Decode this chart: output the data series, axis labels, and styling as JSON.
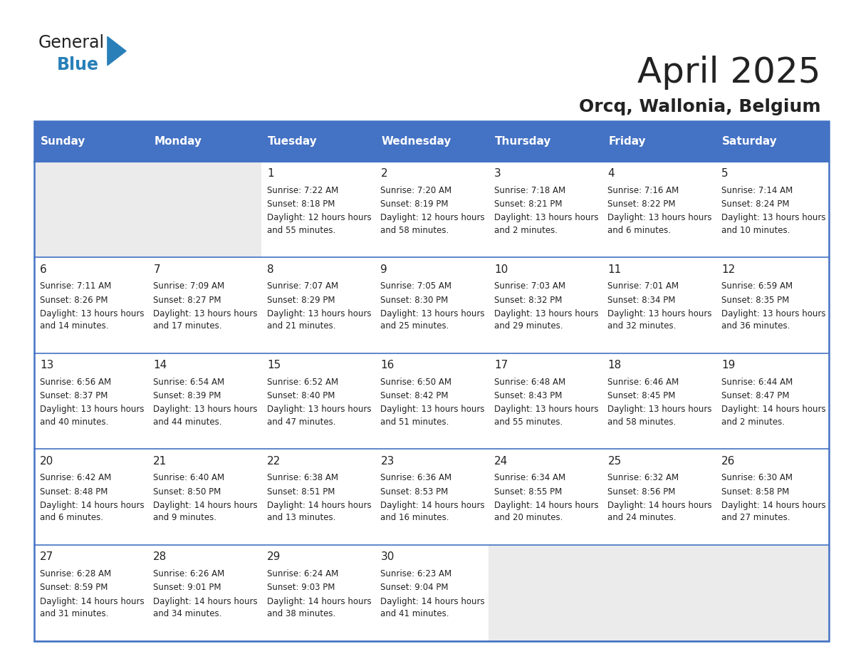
{
  "title": "April 2025",
  "subtitle": "Orcq, Wallonia, Belgium",
  "header_color": "#4472C4",
  "header_text_color": "#FFFFFF",
  "cell_bg_color": "#FFFFFF",
  "empty_cell_bg_color": "#EBEBEB",
  "border_color": "#4472C4",
  "row_sep_color": "#4472C4",
  "day_headers": [
    "Sunday",
    "Monday",
    "Tuesday",
    "Wednesday",
    "Thursday",
    "Friday",
    "Saturday"
  ],
  "title_color": "#222222",
  "subtitle_color": "#222222",
  "days": [
    {
      "day": "",
      "row": 0,
      "col": 0,
      "sunrise": "",
      "sunset": "",
      "daylight": ""
    },
    {
      "day": "",
      "row": 0,
      "col": 1,
      "sunrise": "",
      "sunset": "",
      "daylight": ""
    },
    {
      "day": "1",
      "row": 0,
      "col": 2,
      "sunrise": "7:22 AM",
      "sunset": "8:18 PM",
      "daylight": "12 hours and 55 minutes."
    },
    {
      "day": "2",
      "row": 0,
      "col": 3,
      "sunrise": "7:20 AM",
      "sunset": "8:19 PM",
      "daylight": "12 hours and 58 minutes."
    },
    {
      "day": "3",
      "row": 0,
      "col": 4,
      "sunrise": "7:18 AM",
      "sunset": "8:21 PM",
      "daylight": "13 hours and 2 minutes."
    },
    {
      "day": "4",
      "row": 0,
      "col": 5,
      "sunrise": "7:16 AM",
      "sunset": "8:22 PM",
      "daylight": "13 hours and 6 minutes."
    },
    {
      "day": "5",
      "row": 0,
      "col": 6,
      "sunrise": "7:14 AM",
      "sunset": "8:24 PM",
      "daylight": "13 hours and 10 minutes."
    },
    {
      "day": "6",
      "row": 1,
      "col": 0,
      "sunrise": "7:11 AM",
      "sunset": "8:26 PM",
      "daylight": "13 hours and 14 minutes."
    },
    {
      "day": "7",
      "row": 1,
      "col": 1,
      "sunrise": "7:09 AM",
      "sunset": "8:27 PM",
      "daylight": "13 hours and 17 minutes."
    },
    {
      "day": "8",
      "row": 1,
      "col": 2,
      "sunrise": "7:07 AM",
      "sunset": "8:29 PM",
      "daylight": "13 hours and 21 minutes."
    },
    {
      "day": "9",
      "row": 1,
      "col": 3,
      "sunrise": "7:05 AM",
      "sunset": "8:30 PM",
      "daylight": "13 hours and 25 minutes."
    },
    {
      "day": "10",
      "row": 1,
      "col": 4,
      "sunrise": "7:03 AM",
      "sunset": "8:32 PM",
      "daylight": "13 hours and 29 minutes."
    },
    {
      "day": "11",
      "row": 1,
      "col": 5,
      "sunrise": "7:01 AM",
      "sunset": "8:34 PM",
      "daylight": "13 hours and 32 minutes."
    },
    {
      "day": "12",
      "row": 1,
      "col": 6,
      "sunrise": "6:59 AM",
      "sunset": "8:35 PM",
      "daylight": "13 hours and 36 minutes."
    },
    {
      "day": "13",
      "row": 2,
      "col": 0,
      "sunrise": "6:56 AM",
      "sunset": "8:37 PM",
      "daylight": "13 hours and 40 minutes."
    },
    {
      "day": "14",
      "row": 2,
      "col": 1,
      "sunrise": "6:54 AM",
      "sunset": "8:39 PM",
      "daylight": "13 hours and 44 minutes."
    },
    {
      "day": "15",
      "row": 2,
      "col": 2,
      "sunrise": "6:52 AM",
      "sunset": "8:40 PM",
      "daylight": "13 hours and 47 minutes."
    },
    {
      "day": "16",
      "row": 2,
      "col": 3,
      "sunrise": "6:50 AM",
      "sunset": "8:42 PM",
      "daylight": "13 hours and 51 minutes."
    },
    {
      "day": "17",
      "row": 2,
      "col": 4,
      "sunrise": "6:48 AM",
      "sunset": "8:43 PM",
      "daylight": "13 hours and 55 minutes."
    },
    {
      "day": "18",
      "row": 2,
      "col": 5,
      "sunrise": "6:46 AM",
      "sunset": "8:45 PM",
      "daylight": "13 hours and 58 minutes."
    },
    {
      "day": "19",
      "row": 2,
      "col": 6,
      "sunrise": "6:44 AM",
      "sunset": "8:47 PM",
      "daylight": "14 hours and 2 minutes."
    },
    {
      "day": "20",
      "row": 3,
      "col": 0,
      "sunrise": "6:42 AM",
      "sunset": "8:48 PM",
      "daylight": "14 hours and 6 minutes."
    },
    {
      "day": "21",
      "row": 3,
      "col": 1,
      "sunrise": "6:40 AM",
      "sunset": "8:50 PM",
      "daylight": "14 hours and 9 minutes."
    },
    {
      "day": "22",
      "row": 3,
      "col": 2,
      "sunrise": "6:38 AM",
      "sunset": "8:51 PM",
      "daylight": "14 hours and 13 minutes."
    },
    {
      "day": "23",
      "row": 3,
      "col": 3,
      "sunrise": "6:36 AM",
      "sunset": "8:53 PM",
      "daylight": "14 hours and 16 minutes."
    },
    {
      "day": "24",
      "row": 3,
      "col": 4,
      "sunrise": "6:34 AM",
      "sunset": "8:55 PM",
      "daylight": "14 hours and 20 minutes."
    },
    {
      "day": "25",
      "row": 3,
      "col": 5,
      "sunrise": "6:32 AM",
      "sunset": "8:56 PM",
      "daylight": "14 hours and 24 minutes."
    },
    {
      "day": "26",
      "row": 3,
      "col": 6,
      "sunrise": "6:30 AM",
      "sunset": "8:58 PM",
      "daylight": "14 hours and 27 minutes."
    },
    {
      "day": "27",
      "row": 4,
      "col": 0,
      "sunrise": "6:28 AM",
      "sunset": "8:59 PM",
      "daylight": "14 hours and 31 minutes."
    },
    {
      "day": "28",
      "row": 4,
      "col": 1,
      "sunrise": "6:26 AM",
      "sunset": "9:01 PM",
      "daylight": "14 hours and 34 minutes."
    },
    {
      "day": "29",
      "row": 4,
      "col": 2,
      "sunrise": "6:24 AM",
      "sunset": "9:03 PM",
      "daylight": "14 hours and 38 minutes."
    },
    {
      "day": "30",
      "row": 4,
      "col": 3,
      "sunrise": "6:23 AM",
      "sunset": "9:04 PM",
      "daylight": "14 hours and 41 minutes."
    },
    {
      "day": "",
      "row": 4,
      "col": 4,
      "sunrise": "",
      "sunset": "",
      "daylight": ""
    },
    {
      "day": "",
      "row": 4,
      "col": 5,
      "sunrise": "",
      "sunset": "",
      "daylight": ""
    },
    {
      "day": "",
      "row": 4,
      "col": 6,
      "sunrise": "",
      "sunset": "",
      "daylight": ""
    }
  ],
  "logo_general_color": "#222222",
  "logo_blue_color": "#2980B9",
  "logo_triangle_color": "#2980B9"
}
